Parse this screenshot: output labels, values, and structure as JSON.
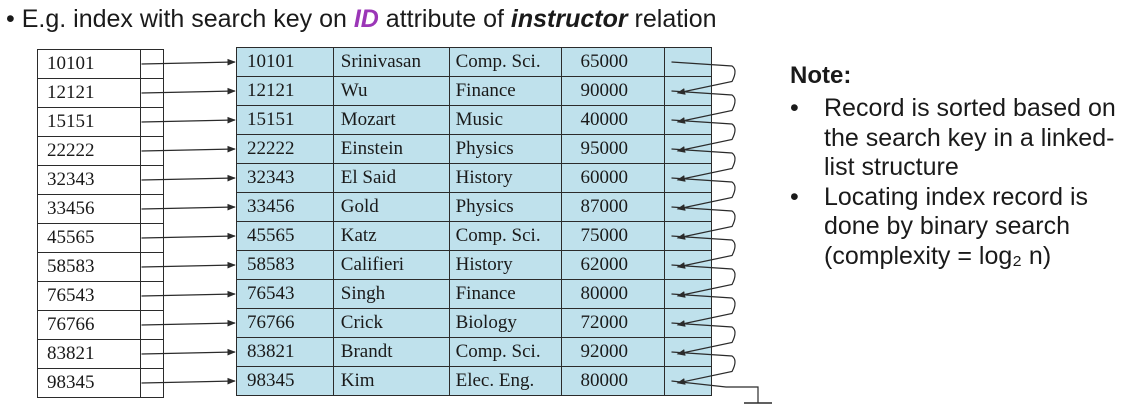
{
  "heading": {
    "bullet": "•",
    "pre": "E.g. index with search key on",
    "key": "ID",
    "mid": "attribute of",
    "relation": "instructor",
    "post": "relation"
  },
  "index_entries": [
    "10101",
    "12121",
    "15151",
    "22222",
    "32343",
    "33456",
    "45565",
    "58583",
    "76543",
    "76766",
    "83821",
    "98345"
  ],
  "records": [
    {
      "id": "10101",
      "name": "Srinivasan",
      "dept": "Comp. Sci.",
      "salary": "65000"
    },
    {
      "id": "12121",
      "name": "Wu",
      "dept": "Finance",
      "salary": "90000"
    },
    {
      "id": "15151",
      "name": "Mozart",
      "dept": "Music",
      "salary": "40000"
    },
    {
      "id": "22222",
      "name": "Einstein",
      "dept": "Physics",
      "salary": "95000"
    },
    {
      "id": "32343",
      "name": "El Said",
      "dept": "History",
      "salary": "60000"
    },
    {
      "id": "33456",
      "name": "Gold",
      "dept": "Physics",
      "salary": "87000"
    },
    {
      "id": "45565",
      "name": "Katz",
      "dept": "Comp. Sci.",
      "salary": "75000"
    },
    {
      "id": "58583",
      "name": "Califieri",
      "dept": "History",
      "salary": "62000"
    },
    {
      "id": "76543",
      "name": "Singh",
      "dept": "Finance",
      "salary": "80000"
    },
    {
      "id": "76766",
      "name": "Crick",
      "dept": "Biology",
      "salary": "72000"
    },
    {
      "id": "83821",
      "name": "Brandt",
      "dept": "Comp. Sci.",
      "salary": "92000"
    },
    {
      "id": "98345",
      "name": "Kim",
      "dept": "Elec. Eng.",
      "salary": "80000"
    }
  ],
  "note": {
    "title": "Note:",
    "bullet": "•",
    "items": [
      "Record is sorted based on the search key in a linked-list structure",
      "Locating index record is done by binary search (complexity = log₂ n)"
    ]
  },
  "colors": {
    "record_fill": "#bfe1ec",
    "keyword_accent": "#9b36b7",
    "line": "#2b2b2b"
  }
}
